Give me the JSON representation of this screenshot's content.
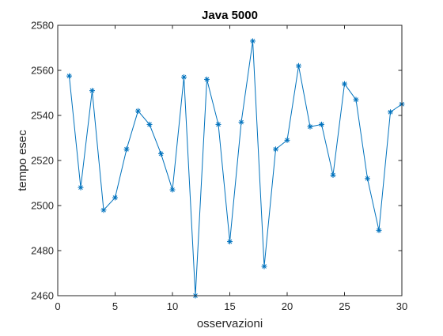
{
  "chart_data": {
    "type": "line",
    "title": "Java 5000",
    "xlabel": "osservazioni",
    "ylabel": "tempo esec",
    "xlim": [
      0,
      30
    ],
    "ylim": [
      2460,
      2580
    ],
    "xticks": [
      0,
      5,
      10,
      15,
      20,
      25,
      30
    ],
    "yticks": [
      2460,
      2480,
      2500,
      2520,
      2540,
      2560,
      2580
    ],
    "xtick_labels": [
      "0",
      "5",
      "10",
      "15",
      "20",
      "25",
      "30"
    ],
    "ytick_labels": [
      "2460",
      "2480",
      "2500",
      "2520",
      "2540",
      "2560",
      "2580"
    ],
    "grid": false,
    "marker": "asterisk",
    "line_color": "#0072BD",
    "series": [
      {
        "x": [
          1,
          2,
          3,
          4,
          5,
          6,
          7,
          8,
          9,
          10,
          11,
          12,
          13,
          14,
          15,
          16,
          17,
          18,
          19,
          20,
          21,
          22,
          23,
          24,
          25,
          26,
          27,
          28,
          29,
          30
        ],
        "values": [
          2557.5,
          2508,
          2551,
          2498,
          2503.5,
          2525,
          2542,
          2536,
          2523,
          2507,
          2557,
          2460,
          2556,
          2536,
          2484,
          2537,
          2573,
          2473,
          2525,
          2529,
          2562,
          2535,
          2536,
          2513.5,
          2554,
          2547,
          2512,
          2489,
          2541.5,
          2545
        ]
      }
    ]
  }
}
